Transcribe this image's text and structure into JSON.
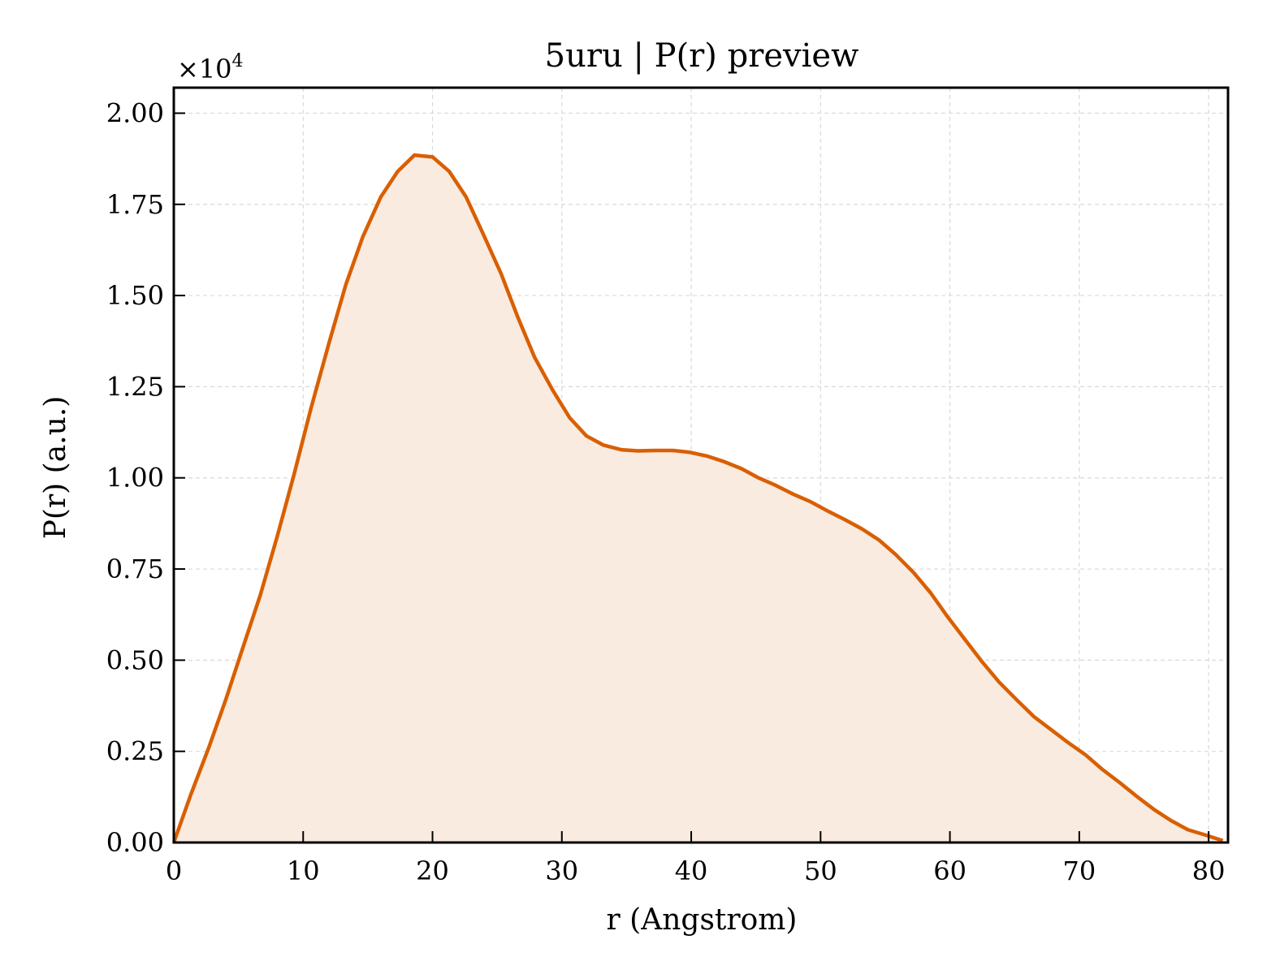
{
  "chart_data": {
    "type": "area",
    "title": "5uru | P(r) preview",
    "xlabel": "r (Angstrom)",
    "ylabel": "P(r) (a.u.)",
    "y_multiplier_label": "×10",
    "y_multiplier_exponent": "4",
    "xlim": [
      0,
      81.5
    ],
    "ylim": [
      0,
      2.07
    ],
    "y_scale_factor": 10000,
    "grid": true,
    "x_ticks": [
      0,
      10,
      20,
      30,
      40,
      50,
      60,
      70,
      80
    ],
    "x_tick_labels": [
      "0",
      "10",
      "20",
      "30",
      "40",
      "50",
      "60",
      "70",
      "80"
    ],
    "y_ticks": [
      0,
      0.25,
      0.5,
      0.75,
      1.0,
      1.25,
      1.5,
      1.75,
      2.0
    ],
    "y_tick_labels": [
      "0.00",
      "0.25",
      "0.50",
      "0.75",
      "1.00",
      "1.25",
      "1.50",
      "1.75",
      "2.00"
    ],
    "line_color": "#d95f02",
    "fill_color": "#f9ebe0",
    "series": [
      {
        "x": [
          0,
          1.3,
          2.7,
          4.0,
          5.3,
          6.7,
          8.0,
          9.3,
          10.6,
          12.0,
          13.3,
          14.6,
          16.0,
          17.3,
          18.6,
          20.0,
          21.3,
          22.6,
          23.9,
          25.3,
          26.6,
          27.9,
          29.3,
          30.6,
          31.9,
          33.2,
          34.6,
          35.9,
          37.2,
          38.6,
          39.9,
          41.2,
          42.5,
          43.9,
          45.2,
          46.5,
          47.9,
          49.2,
          50.5,
          51.9,
          53.2,
          54.5,
          55.8,
          57.2,
          58.5,
          59.8,
          61.2,
          62.5,
          63.8,
          65.2,
          66.5,
          67.8,
          69.1,
          70.5,
          71.8,
          73.1,
          74.5,
          75.8,
          77.1,
          78.4,
          79.8,
          81.1
        ],
        "y": [
          0.0,
          0.13,
          0.26,
          0.39,
          0.53,
          0.68,
          0.84,
          1.01,
          1.19,
          1.37,
          1.53,
          1.66,
          1.77,
          1.84,
          1.885,
          1.88,
          1.84,
          1.77,
          1.67,
          1.56,
          1.44,
          1.33,
          1.24,
          1.165,
          1.115,
          1.09,
          1.077,
          1.074,
          1.075,
          1.075,
          1.07,
          1.06,
          1.045,
          1.025,
          1.0,
          0.98,
          0.955,
          0.935,
          0.91,
          0.885,
          0.86,
          0.83,
          0.79,
          0.74,
          0.685,
          0.62,
          0.555,
          0.495,
          0.44,
          0.39,
          0.345,
          0.31,
          0.275,
          0.24,
          0.2,
          0.165,
          0.125,
          0.09,
          0.06,
          0.035,
          0.02,
          0.005
        ]
      }
    ]
  }
}
